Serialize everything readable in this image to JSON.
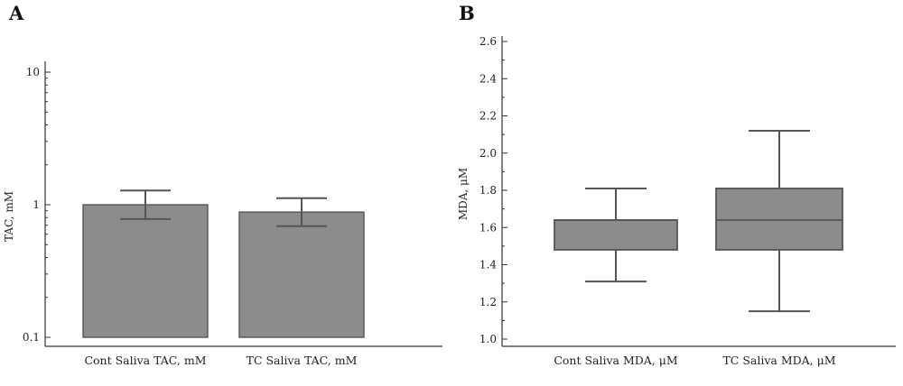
{
  "chart_data": [
    {
      "panel": "A",
      "type": "bar",
      "yscale": "log",
      "ylabel": "TAC, mM",
      "ylim": [
        0.1,
        10
      ],
      "yticks": [
        0.1,
        1,
        10
      ],
      "ytick_labels": [
        "0.1",
        "1",
        "10"
      ],
      "minor_ticks": true,
      "grid": false,
      "categories": [
        "Cont Saliva TAC, mM",
        "TC Saliva TAC, mM"
      ],
      "values": [
        1.0,
        0.88
      ],
      "error_low": [
        0.78,
        0.69
      ],
      "error_high": [
        1.28,
        1.12
      ],
      "color": "#8c8c8c"
    },
    {
      "panel": "B",
      "type": "box",
      "ylabel": "MDA, μM",
      "ylim": [
        0.96,
        2.64
      ],
      "yticks": [
        1.0,
        1.2,
        1.4,
        1.6,
        1.8,
        2.0,
        2.2,
        2.4,
        2.6
      ],
      "ytick_labels": [
        "1.0",
        "1.2",
        "1.4",
        "1.6",
        "1.8",
        "2.0",
        "2.2",
        "2.4",
        "2.6"
      ],
      "minor_ticks": true,
      "grid": false,
      "categories": [
        "Cont Saliva MDA, μM",
        "TC Saliva MDA, μM"
      ],
      "boxes": [
        {
          "min": 1.31,
          "q1": 1.48,
          "median": 1.64,
          "q3": 1.64,
          "max": 1.81
        },
        {
          "min": 1.15,
          "q1": 1.48,
          "median": 1.64,
          "q3": 1.81,
          "max": 2.12
        }
      ],
      "color": "#8c8c8c"
    }
  ]
}
